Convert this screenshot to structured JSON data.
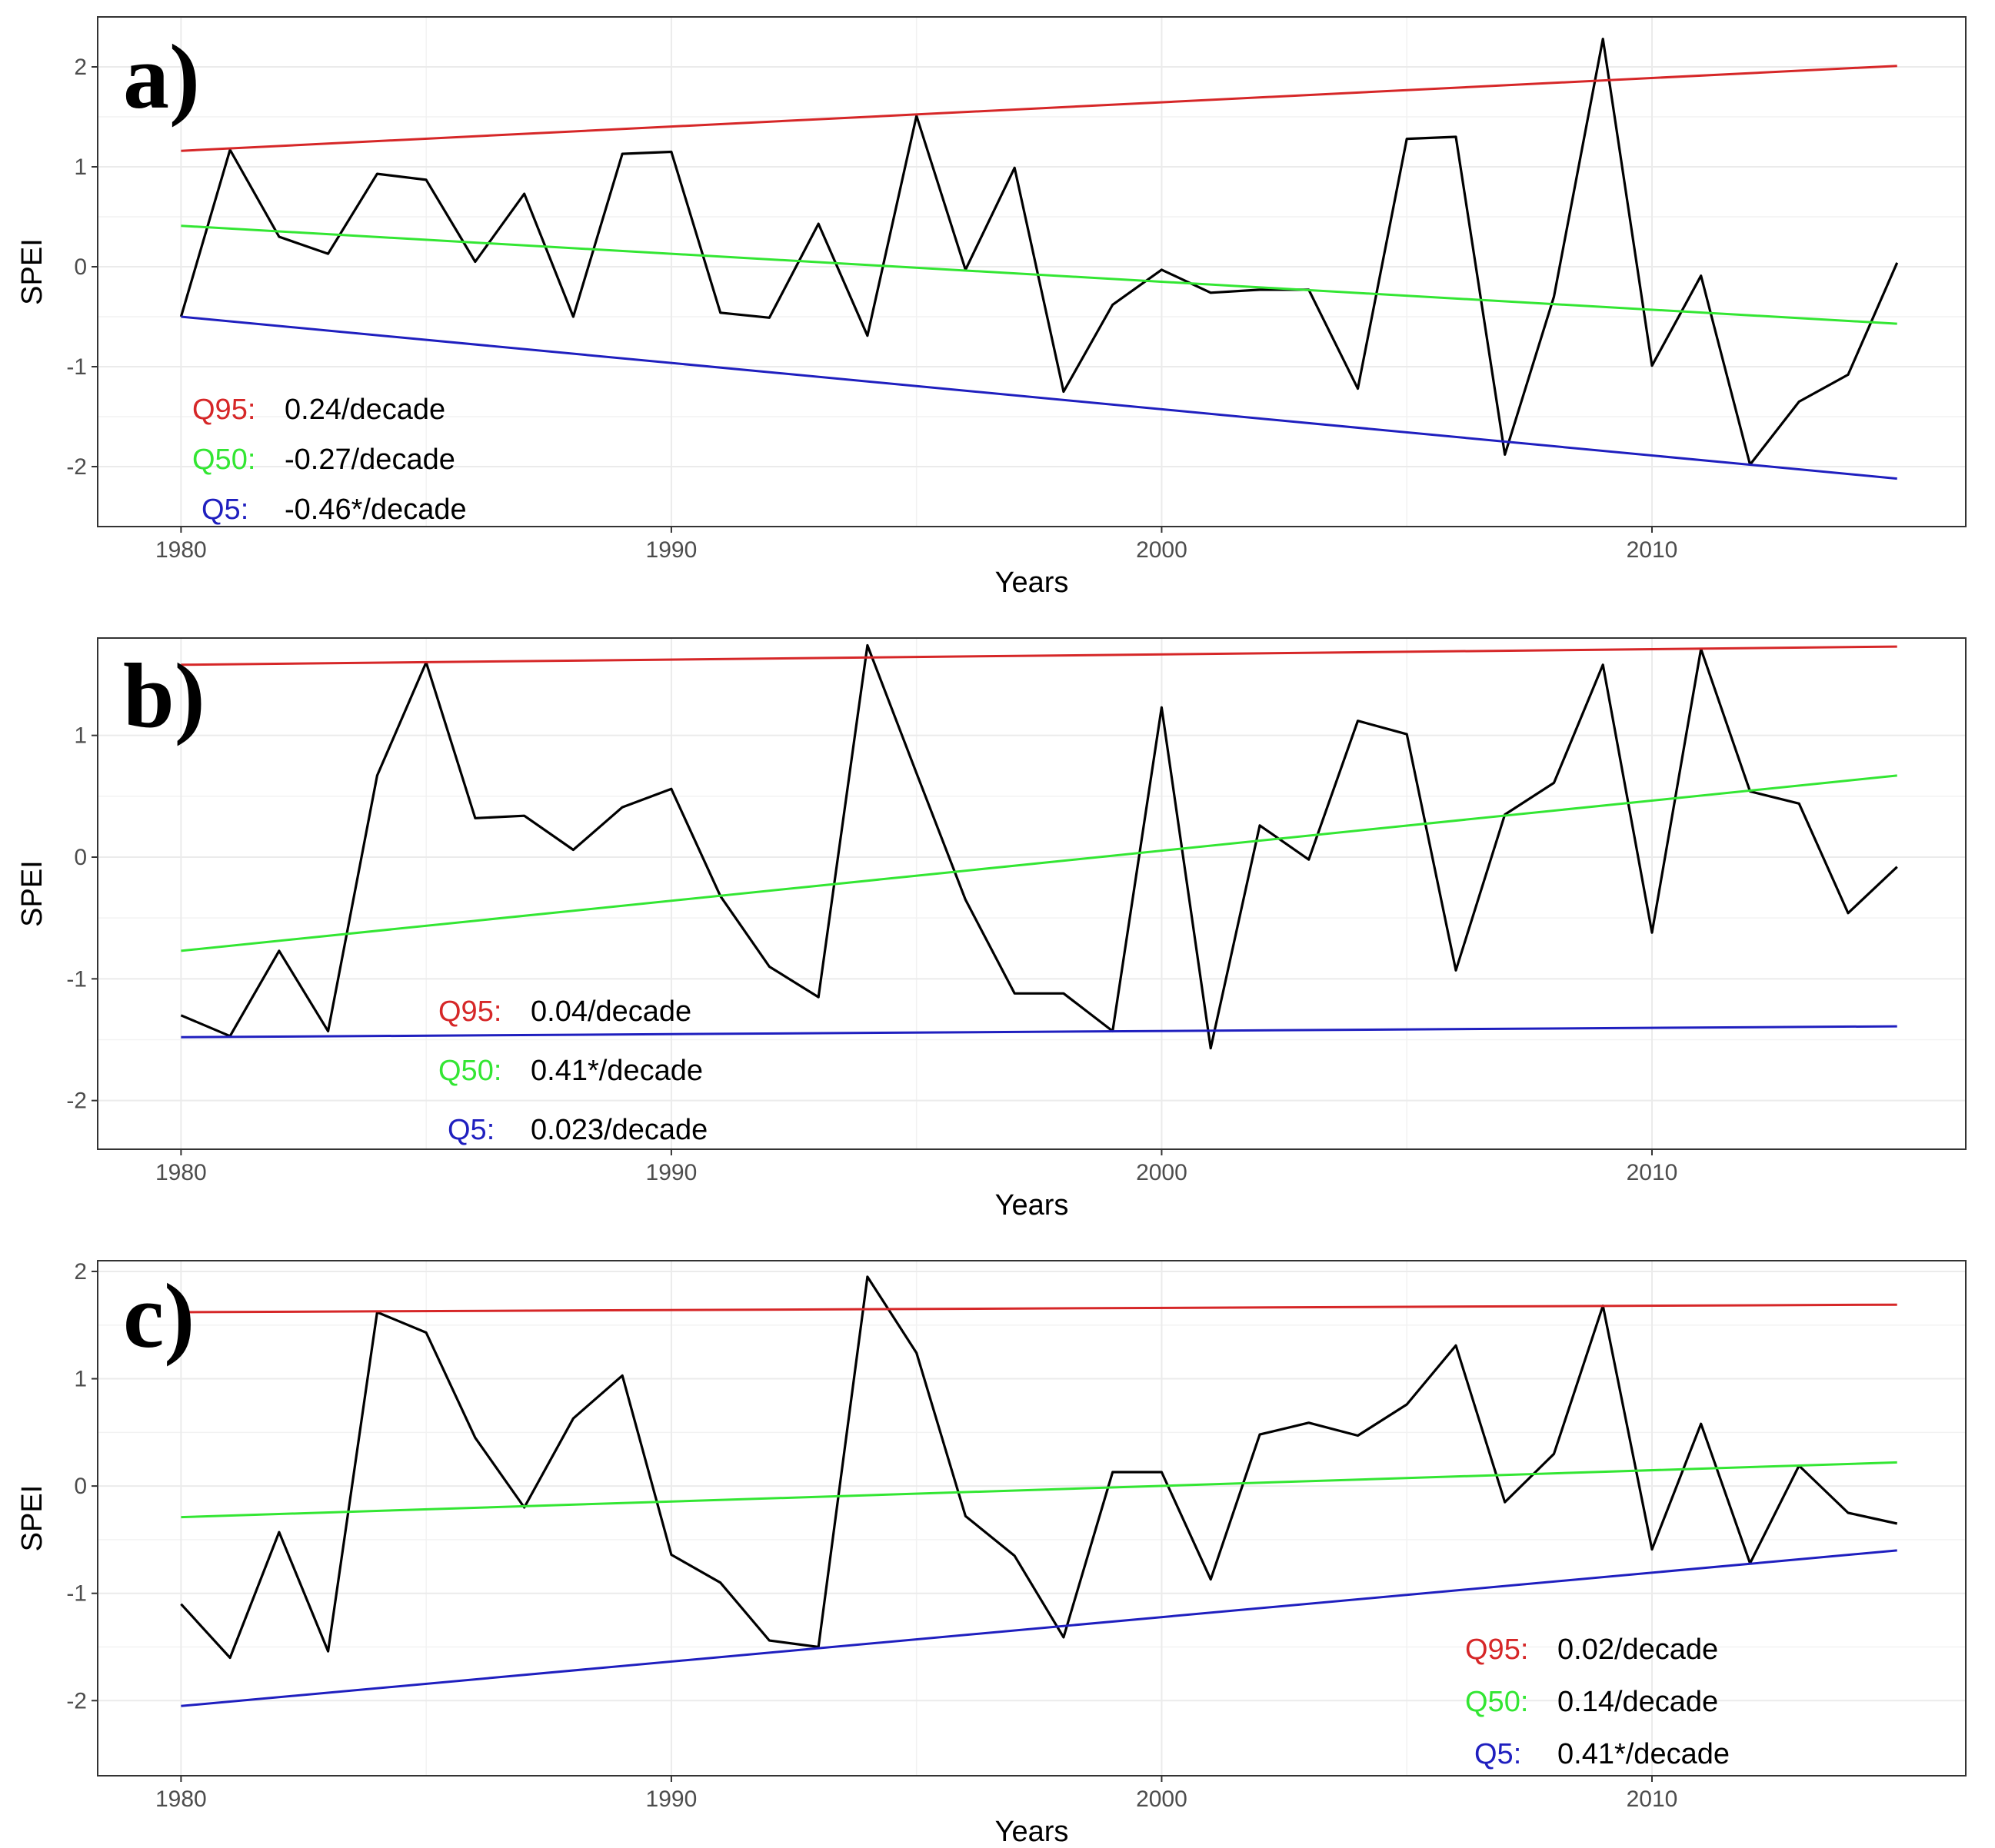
{
  "colors": {
    "q95": "#d62728",
    "q50": "#33e633",
    "q5": "#1f1fbf",
    "series": "#000000",
    "grid": "#ebebeb",
    "border": "#333333"
  },
  "chart_data": [
    {
      "type": "line",
      "panel_label": "a)",
      "xlabel": "Years",
      "ylabel": "SPEI",
      "xlim": [
        1978.3,
        2016.4
      ],
      "ylim": [
        -2.6,
        2.5
      ],
      "xticks": [
        1980,
        1990,
        2000,
        2010
      ],
      "xtick_labels": [
        "1980",
        "1990",
        "2000",
        "2010"
      ],
      "yticks": [
        -2,
        -1,
        0,
        1,
        2
      ],
      "ytick_labels": [
        "-2",
        "-1",
        "0",
        "1",
        "2"
      ],
      "legend_position": "bottom-left",
      "x": [
        1980,
        1981,
        1982,
        1983,
        1984,
        1985,
        1986,
        1987,
        1988,
        1989,
        1990,
        1991,
        1992,
        1993,
        1994,
        1995,
        1996,
        1997,
        1998,
        1999,
        2000,
        2001,
        2002,
        2003,
        2004,
        2005,
        2006,
        2007,
        2008,
        2009,
        2010,
        2011,
        2012,
        2013,
        2014,
        2015
      ],
      "series": [
        {
          "name": "SPEI",
          "values": [
            -0.5,
            1.17,
            0.3,
            0.13,
            0.93,
            0.87,
            0.05,
            0.73,
            -0.5,
            1.13,
            1.15,
            -0.46,
            -0.51,
            0.43,
            -0.69,
            1.51,
            -0.03,
            0.99,
            -1.25,
            -0.38,
            -0.03,
            -0.26,
            -0.23,
            -0.23,
            -1.22,
            1.28,
            1.3,
            -1.88,
            -0.3,
            2.28,
            -0.99,
            -0.09,
            -1.98,
            -1.35,
            -1.08,
            0.04
          ]
        },
        {
          "name": "Q95",
          "values": [
            1.16,
            2.01
          ],
          "x": [
            1980,
            2015
          ]
        },
        {
          "name": "Q50",
          "values": [
            0.41,
            -0.57
          ],
          "x": [
            1980,
            2015
          ]
        },
        {
          "name": "Q5",
          "values": [
            -0.5,
            -2.12
          ],
          "x": [
            1980,
            2015
          ]
        }
      ],
      "legend": [
        {
          "key": "Q95:",
          "text": "0.24/decade"
        },
        {
          "key": "Q50:",
          "text": "-0.27/decade"
        },
        {
          "key": "Q5:",
          "text": "-0.46*/decade"
        }
      ]
    },
    {
      "type": "line",
      "panel_label": "b)",
      "xlabel": "Years",
      "ylabel": "SPEI",
      "xlim": [
        1978.3,
        2016.4
      ],
      "ylim": [
        -2.4,
        1.8
      ],
      "xticks": [
        1980,
        1990,
        2000,
        2010
      ],
      "xtick_labels": [
        "1980",
        "1990",
        "2000",
        "2010"
      ],
      "yticks": [
        -2,
        -1,
        0,
        1
      ],
      "ytick_labels": [
        "-2",
        "-1",
        "0",
        "1"
      ],
      "legend_position": "bottom-left",
      "x": [
        1980,
        1981,
        1982,
        1983,
        1984,
        1985,
        1986,
        1987,
        1988,
        1989,
        1990,
        1991,
        1992,
        1993,
        1994,
        1995,
        1996,
        1997,
        1998,
        1999,
        2000,
        2001,
        2002,
        2003,
        2004,
        2005,
        2006,
        2007,
        2008,
        2009,
        2010,
        2011,
        2012,
        2013,
        2014,
        2015
      ],
      "series": [
        {
          "name": "SPEI",
          "values": [
            -1.3,
            -1.47,
            -0.77,
            -1.43,
            0.67,
            1.6,
            0.32,
            0.34,
            0.06,
            0.41,
            0.56,
            -0.32,
            -0.9,
            -1.15,
            1.74,
            0.69,
            -0.35,
            -1.12,
            -1.12,
            -1.43,
            1.23,
            -1.57,
            0.26,
            -0.02,
            1.12,
            1.01,
            -0.93,
            0.35,
            0.61,
            1.58,
            -0.62,
            1.71,
            0.54,
            0.44,
            -0.46,
            -0.08
          ]
        },
        {
          "name": "Q95",
          "values": [
            1.58,
            1.73
          ],
          "x": [
            1980,
            2015
          ]
        },
        {
          "name": "Q50",
          "values": [
            -0.77,
            0.67
          ],
          "x": [
            1980,
            2015
          ]
        },
        {
          "name": "Q5",
          "values": [
            -1.48,
            -1.39
          ],
          "x": [
            1980,
            2015
          ]
        }
      ],
      "legend": [
        {
          "key": "Q95:",
          "text": "0.04/decade"
        },
        {
          "key": "Q50:",
          "text": "0.41*/decade"
        },
        {
          "key": "Q5:",
          "text": "0.023/decade"
        }
      ]
    },
    {
      "type": "line",
      "panel_label": "c)",
      "xlabel": "Years",
      "ylabel": "SPEI",
      "xlim": [
        1978.3,
        2016.4
      ],
      "ylim": [
        -2.7,
        2.1
      ],
      "xticks": [
        1980,
        1990,
        2000,
        2010
      ],
      "xtick_labels": [
        "1980",
        "1990",
        "2000",
        "2010"
      ],
      "yticks": [
        -2,
        -1,
        0,
        1,
        2
      ],
      "ytick_labels": [
        "-2",
        "-1",
        "0",
        "1",
        "2"
      ],
      "legend_position": "bottom-right",
      "x": [
        1980,
        1981,
        1982,
        1983,
        1984,
        1985,
        1986,
        1987,
        1988,
        1989,
        1990,
        1991,
        1992,
        1993,
        1994,
        1995,
        1996,
        1997,
        1998,
        1999,
        2000,
        2001,
        2002,
        2003,
        2004,
        2005,
        2006,
        2007,
        2008,
        2009,
        2010,
        2011,
        2012,
        2013,
        2014,
        2015
      ],
      "series": [
        {
          "name": "SPEI",
          "values": [
            -1.1,
            -1.6,
            -0.43,
            -1.54,
            1.62,
            1.43,
            0.45,
            -0.2,
            0.63,
            1.03,
            -0.64,
            -0.9,
            -1.44,
            -1.5,
            1.95,
            1.24,
            -0.28,
            -0.65,
            -1.41,
            0.13,
            0.13,
            -0.87,
            0.48,
            0.59,
            0.47,
            0.76,
            1.31,
            -0.15,
            0.3,
            1.68,
            -0.59,
            0.58,
            -0.72,
            0.19,
            -0.25,
            -0.35
          ]
        },
        {
          "name": "Q95",
          "values": [
            1.62,
            1.69
          ],
          "x": [
            1980,
            2015
          ]
        },
        {
          "name": "Q50",
          "values": [
            -0.29,
            0.22
          ],
          "x": [
            1980,
            2015
          ]
        },
        {
          "name": "Q5",
          "values": [
            -2.05,
            -0.6
          ],
          "x": [
            1980,
            2015
          ]
        }
      ],
      "legend": [
        {
          "key": "Q95:",
          "text": "0.02/decade"
        },
        {
          "key": "Q50:",
          "text": "0.14/decade"
        },
        {
          "key": "Q5:",
          "text": "0.41*/decade"
        }
      ]
    }
  ]
}
